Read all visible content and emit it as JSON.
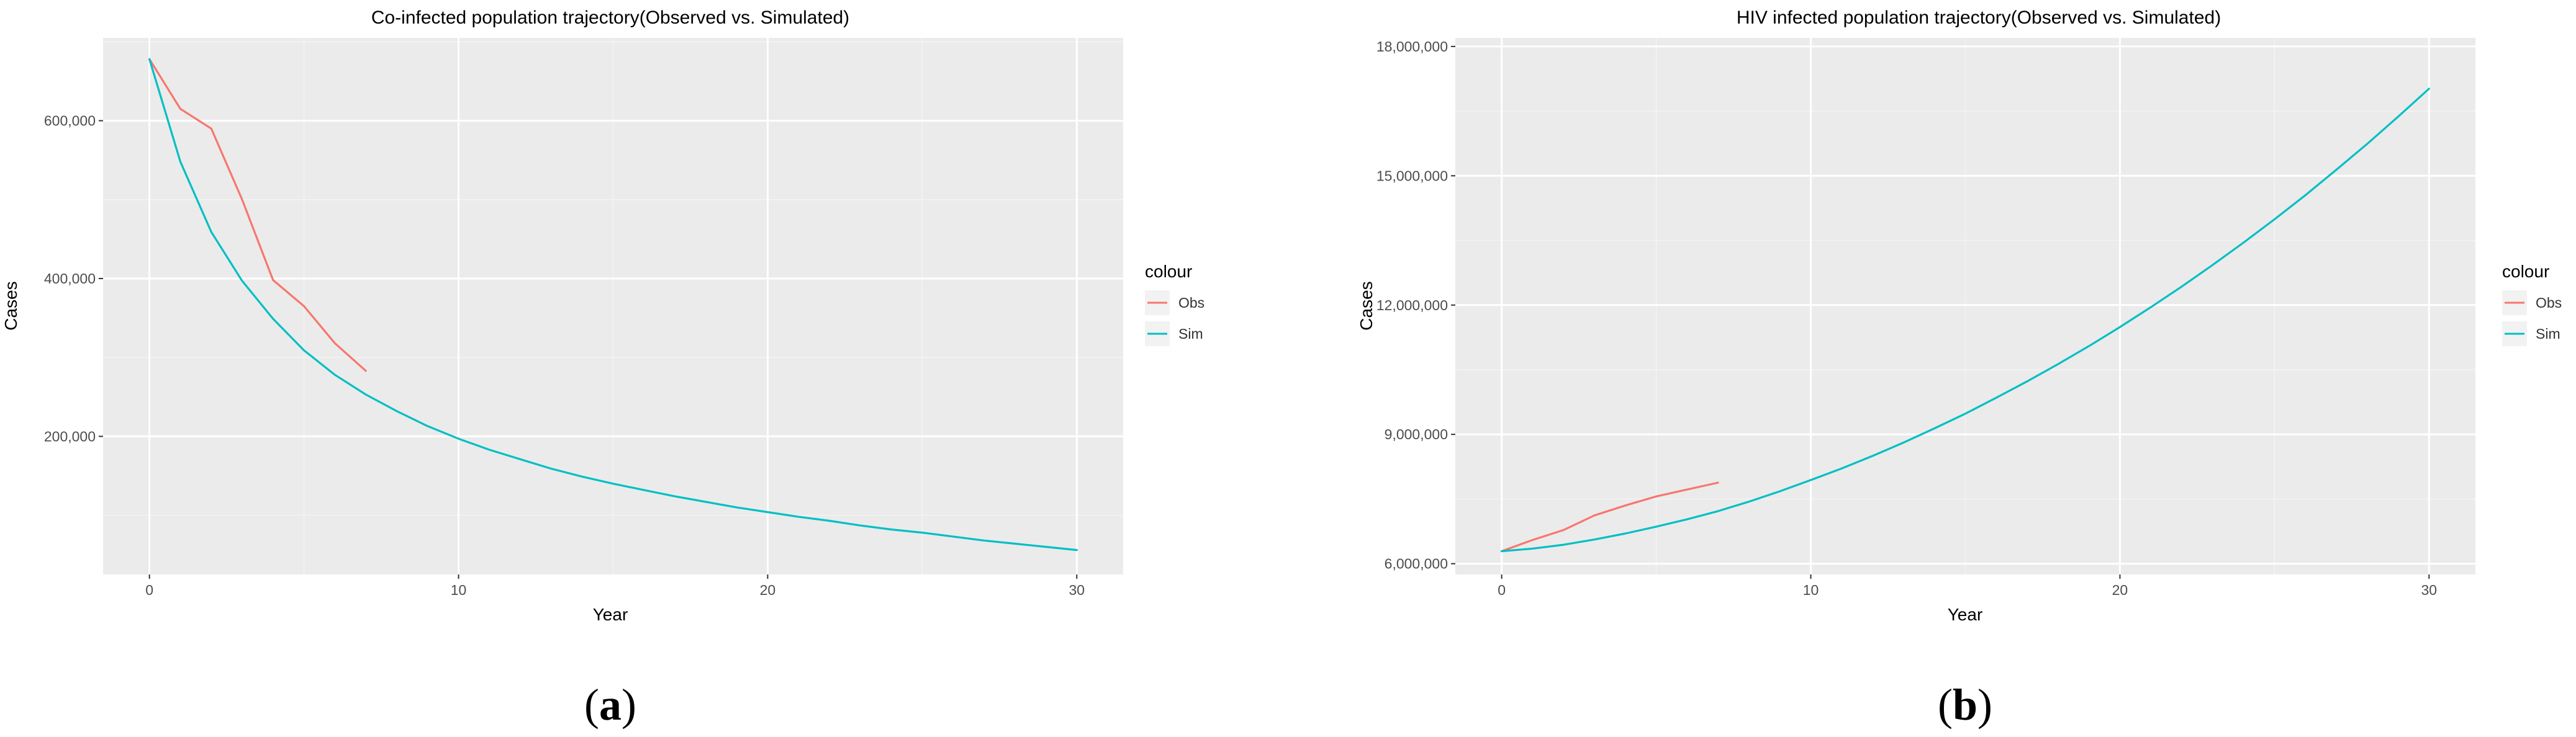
{
  "legend_title": "colour",
  "chart_data": [
    {
      "type": "line",
      "title": "Co-infected population trajectory(Observed vs. Simulated)",
      "xlabel": "Year",
      "ylabel": "Cases",
      "panel_label": "a",
      "xlim": [
        -1.5,
        31.5
      ],
      "ylim": [
        25000,
        705000
      ],
      "xticks": [
        0,
        10,
        20,
        30
      ],
      "xtick_labels": [
        "0",
        "10",
        "20",
        "30"
      ],
      "yticks": [
        200000,
        400000,
        600000
      ],
      "ytick_labels": [
        "200,000",
        "400,000",
        "600,000"
      ],
      "grid": true,
      "legend_position": "right",
      "series": [
        {
          "name": "Obs",
          "color": "#F8766D",
          "x": [
            0,
            1,
            2,
            3,
            4,
            5,
            6,
            7
          ],
          "y": [
            678000,
            615000,
            590000,
            500000,
            398000,
            365000,
            318000,
            283000
          ]
        },
        {
          "name": "Sim",
          "color": "#00BFC4",
          "x": [
            0,
            1,
            2,
            3,
            4,
            5,
            6,
            7,
            8,
            9,
            10,
            11,
            12,
            13,
            14,
            15,
            16,
            17,
            18,
            19,
            20,
            21,
            22,
            23,
            24,
            25,
            26,
            27,
            28,
            29,
            30
          ],
          "y": [
            678000,
            548000,
            459000,
            397000,
            349000,
            309000,
            278000,
            253000,
            232000,
            213000,
            197000,
            183000,
            171000,
            159000,
            149000,
            140000,
            132000,
            124000,
            117000,
            110000,
            104000,
            98000,
            93000,
            87000,
            82000,
            78000,
            73000,
            68000,
            64000,
            60000,
            56000
          ]
        }
      ]
    },
    {
      "type": "line",
      "title": "HIV infected population trajectory(Observed vs. Simulated)",
      "xlabel": "Year",
      "ylabel": "Cases",
      "panel_label": "b",
      "xlim": [
        -1.5,
        31.5
      ],
      "ylim": [
        5750000,
        18200000
      ],
      "xticks": [
        0,
        10,
        20,
        30
      ],
      "xtick_labels": [
        "0",
        "10",
        "20",
        "30"
      ],
      "yticks": [
        6000000,
        9000000,
        12000000,
        15000000,
        18000000
      ],
      "ytick_labels": [
        "6,000,000",
        "9,000,000",
        "12,000,000",
        "15,000,000",
        "18,000,000"
      ],
      "grid": true,
      "legend_position": "right",
      "series": [
        {
          "name": "Obs",
          "color": "#F8766D",
          "x": [
            0,
            1,
            2,
            3,
            4,
            5,
            6,
            7
          ],
          "y": [
            6290000,
            6550000,
            6780000,
            7120000,
            7350000,
            7560000,
            7720000,
            7880000
          ]
        },
        {
          "name": "Sim",
          "color": "#00BFC4",
          "x": [
            0,
            1,
            2,
            3,
            4,
            5,
            6,
            7,
            8,
            9,
            10,
            11,
            12,
            13,
            14,
            15,
            16,
            17,
            18,
            19,
            20,
            21,
            22,
            23,
            24,
            25,
            26,
            27,
            28,
            29,
            30
          ],
          "y": [
            6290000,
            6350000,
            6440000,
            6560000,
            6700000,
            6860000,
            7030000,
            7220000,
            7440000,
            7680000,
            7940000,
            8210000,
            8500000,
            8810000,
            9140000,
            9480000,
            9850000,
            10230000,
            10630000,
            11050000,
            11490000,
            11950000,
            12430000,
            12930000,
            13450000,
            13990000,
            14550000,
            15140000,
            15740000,
            16370000,
            17020000
          ]
        }
      ]
    }
  ]
}
